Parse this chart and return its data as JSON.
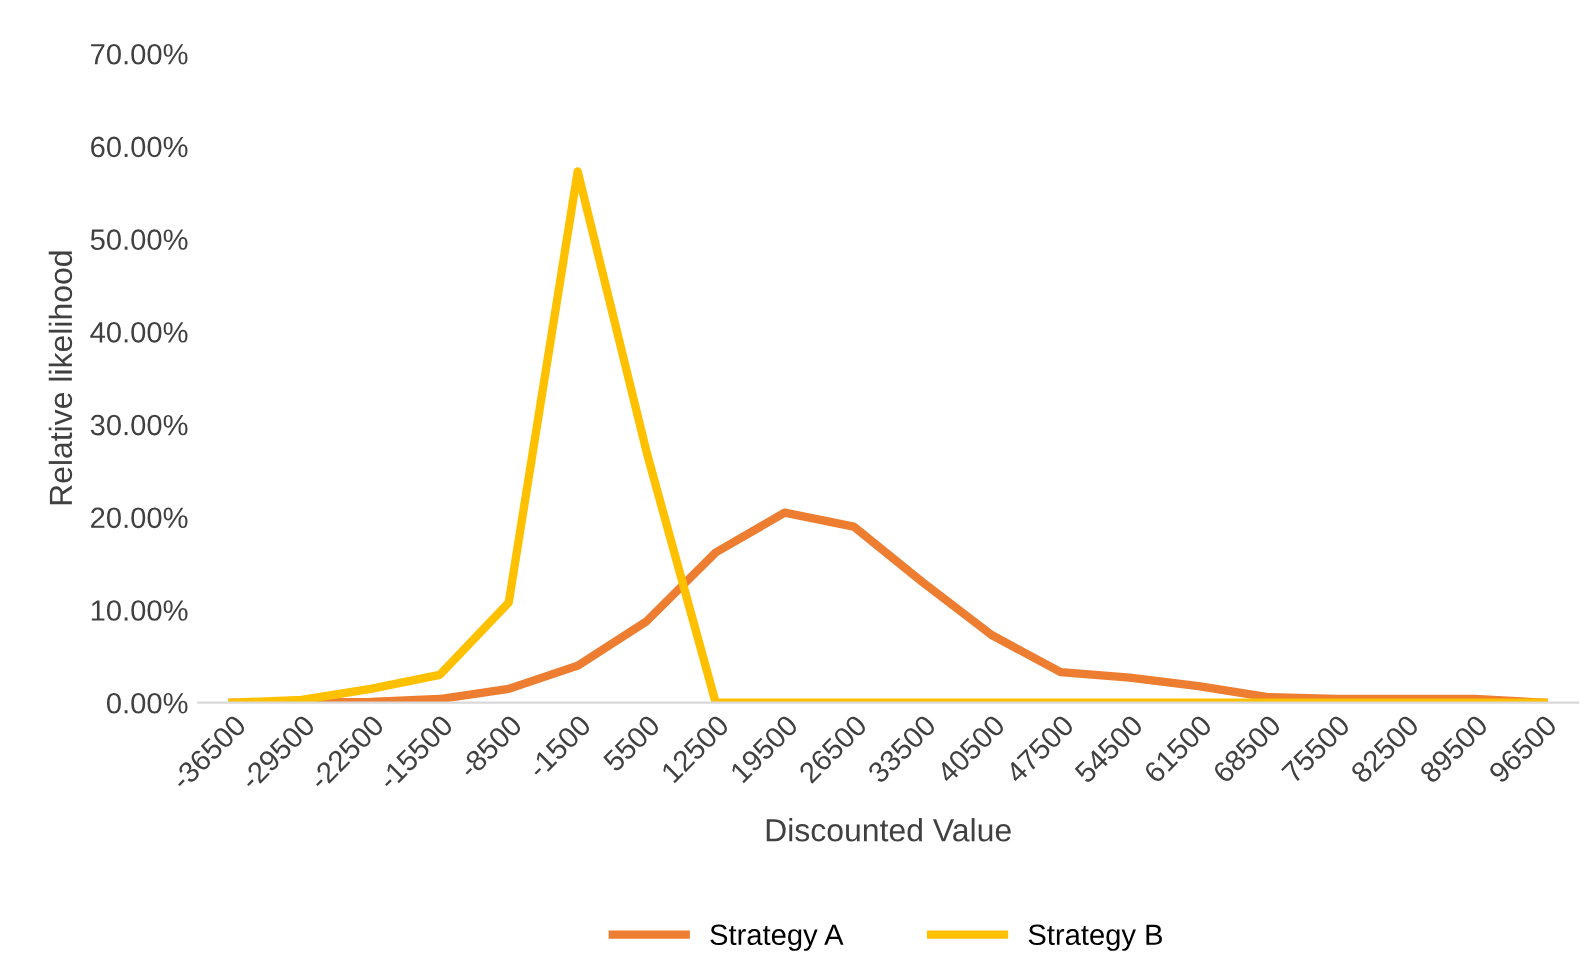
{
  "chart_data": {
    "type": "line",
    "xlabel": "Discounted Value",
    "ylabel": "Relative likelihood",
    "categories": [
      "-36500",
      "-29500",
      "-22500",
      "-15500",
      "-8500",
      "-1500",
      "5500",
      "12500",
      "19500",
      "26500",
      "33500",
      "40500",
      "47500",
      "54500",
      "61500",
      "68500",
      "75500",
      "82500",
      "89500",
      "96500"
    ],
    "series": [
      {
        "name": "Strategy A",
        "color": "#ed7d31",
        "values": [
          0,
          0,
          0.1,
          0.4,
          1.5,
          4.0,
          8.8,
          16.2,
          20.5,
          19.0,
          13.0,
          7.3,
          3.3,
          2.7,
          1.8,
          0.6,
          0.4,
          0.4,
          0.4,
          0.0
        ]
      },
      {
        "name": "Strategy B",
        "color": "#ffc000",
        "values": [
          0,
          0.3,
          1.5,
          3.0,
          10.8,
          57.3,
          27,
          0,
          0,
          0,
          0,
          0,
          0,
          0,
          0,
          0,
          0,
          0,
          0,
          0
        ]
      }
    ],
    "ylim": [
      0,
      70
    ],
    "yticks": [
      {
        "value": 0,
        "label": "0.00%"
      },
      {
        "value": 10,
        "label": "10.00%"
      },
      {
        "value": 20,
        "label": "20.00%"
      },
      {
        "value": 30,
        "label": "30.00%"
      },
      {
        "value": 40,
        "label": "40.00%"
      },
      {
        "value": 50,
        "label": "50.00%"
      },
      {
        "value": 60,
        "label": "60.00%"
      },
      {
        "value": 70,
        "label": "70.00%"
      }
    ],
    "grid": false,
    "legend": "bottom",
    "marker": "none",
    "line_style": "solid"
  }
}
